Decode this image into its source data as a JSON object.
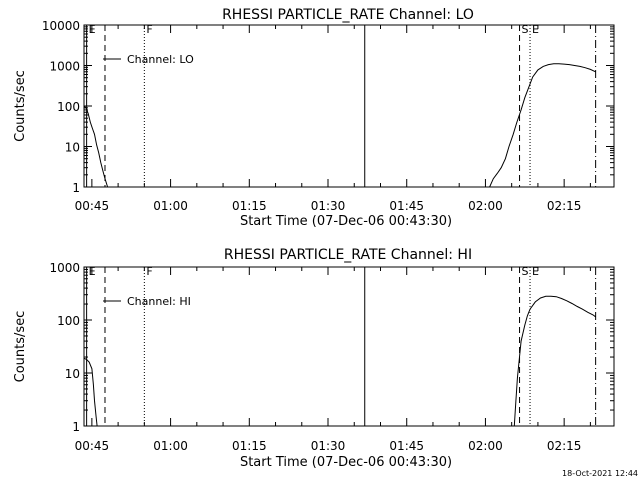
{
  "timestamp": "18-Oct-2021 12:44",
  "colors": {
    "background": "#ffffff",
    "ink": "#000000"
  },
  "chart_data": [
    {
      "type": "line",
      "title": "RHESSI PARTICLE_RATE Channel: LO",
      "ylabel": "Counts/sec",
      "xlabel": "Start Time (07-Dec-06 00:43:30)",
      "yscale": "log",
      "ylim": [
        1,
        10000
      ],
      "y_ticks": [
        "1",
        "10",
        "100",
        "1000",
        "10000"
      ],
      "x_range_minutes": [
        0,
        101
      ],
      "x_ticks": [
        {
          "label": "00:45",
          "t": 1.5
        },
        {
          "label": "01:00",
          "t": 16.5
        },
        {
          "label": "01:15",
          "t": 31.5
        },
        {
          "label": "01:30",
          "t": 46.5
        },
        {
          "label": "01:45",
          "t": 61.5
        },
        {
          "label": "02:00",
          "t": 76.5
        },
        {
          "label": "02:15",
          "t": 91.5
        }
      ],
      "legend": {
        "text": "Channel: LO",
        "placement": "top-left"
      },
      "markers": [
        {
          "label": "E",
          "t": 0.5,
          "style": "solid"
        },
        {
          "label": "",
          "t": 4.0,
          "style": "dashed"
        },
        {
          "label": "F",
          "t": 11.5,
          "style": "dotted"
        },
        {
          "label": "",
          "t": 53.5,
          "style": "solid"
        },
        {
          "label": "S",
          "t": 83.0,
          "style": "dashed"
        },
        {
          "label": "E",
          "t": 85.0,
          "style": "dotted"
        },
        {
          "label": "",
          "t": 97.5,
          "style": "dashdot"
        }
      ],
      "series": [
        {
          "segments": [
            [
              [
                0.0,
                100
              ],
              [
                0.4,
                90
              ],
              [
                0.8,
                65
              ],
              [
                1.2,
                40
              ],
              [
                1.6,
                28
              ],
              [
                2.0,
                20
              ],
              [
                2.4,
                11
              ],
              [
                2.8,
                7
              ],
              [
                3.2,
                4
              ],
              [
                3.6,
                2.5
              ],
              [
                4.0,
                1.6
              ],
              [
                4.5,
                1.0
              ]
            ],
            [
              [
                77.3,
                1.0
              ],
              [
                78.0,
                1.6
              ],
              [
                78.8,
                2.2
              ],
              [
                79.5,
                3.0
              ],
              [
                80.3,
                5
              ],
              [
                81.0,
                10
              ],
              [
                81.8,
                20
              ],
              [
                82.5,
                40
              ],
              [
                83.3,
                80
              ],
              [
                84.0,
                160
              ],
              [
                84.8,
                300
              ],
              [
                85.5,
                520
              ],
              [
                86.5,
                780
              ],
              [
                87.5,
                950
              ],
              [
                88.5,
                1050
              ],
              [
                89.5,
                1100
              ],
              [
                90.5,
                1100
              ],
              [
                91.5,
                1080
              ],
              [
                92.5,
                1050
              ],
              [
                93.5,
                1000
              ],
              [
                94.5,
                950
              ],
              [
                95.5,
                880
              ],
              [
                96.5,
                800
              ],
              [
                97.5,
                700
              ]
            ]
          ]
        }
      ]
    },
    {
      "type": "line",
      "title": "RHESSI PARTICLE_RATE Channel: HI",
      "ylabel": "Counts/sec",
      "xlabel": "Start Time (07-Dec-06 00:43:30)",
      "yscale": "log",
      "ylim": [
        1,
        1000
      ],
      "y_ticks": [
        "1",
        "10",
        "100",
        "1000"
      ],
      "x_range_minutes": [
        0,
        101
      ],
      "x_ticks": [
        {
          "label": "00:45",
          "t": 1.5
        },
        {
          "label": "01:00",
          "t": 16.5
        },
        {
          "label": "01:15",
          "t": 31.5
        },
        {
          "label": "01:30",
          "t": 46.5
        },
        {
          "label": "01:45",
          "t": 61.5
        },
        {
          "label": "02:00",
          "t": 76.5
        },
        {
          "label": "02:15",
          "t": 91.5
        }
      ],
      "legend": {
        "text": "Channel: HI",
        "placement": "top-left"
      },
      "markers": [
        {
          "label": "E",
          "t": 0.5,
          "style": "solid"
        },
        {
          "label": "",
          "t": 4.0,
          "style": "dashed"
        },
        {
          "label": "F",
          "t": 11.5,
          "style": "dotted"
        },
        {
          "label": "",
          "t": 53.5,
          "style": "solid"
        },
        {
          "label": "S",
          "t": 83.0,
          "style": "dashed"
        },
        {
          "label": "E",
          "t": 85.0,
          "style": "dotted"
        },
        {
          "label": "",
          "t": 97.5,
          "style": "dashdot"
        }
      ],
      "series": [
        {
          "segments": [
            [
              [
                0.0,
                19
              ],
              [
                0.5,
                18
              ],
              [
                1.0,
                16
              ],
              [
                1.5,
                12
              ],
              [
                1.8,
                6
              ],
              [
                2.0,
                3
              ],
              [
                2.3,
                1.5
              ],
              [
                2.5,
                1.0
              ]
            ],
            [
              [
                82.0,
                1.0
              ],
              [
                82.3,
                3
              ],
              [
                82.6,
                8
              ],
              [
                83.0,
                20
              ],
              [
                83.3,
                40
              ],
              [
                84.0,
                80
              ],
              [
                84.5,
                120
              ],
              [
                85.0,
                160
              ],
              [
                86.0,
                220
              ],
              [
                87.0,
                260
              ],
              [
                88.0,
                280
              ],
              [
                89.0,
                280
              ],
              [
                90.0,
                275
              ],
              [
                91.0,
                255
              ],
              [
                92.0,
                230
              ],
              [
                93.0,
                205
              ],
              [
                94.0,
                180
              ],
              [
                95.0,
                160
              ],
              [
                96.0,
                140
              ],
              [
                97.0,
                125
              ],
              [
                97.5,
                115
              ]
            ]
          ]
        }
      ]
    }
  ]
}
